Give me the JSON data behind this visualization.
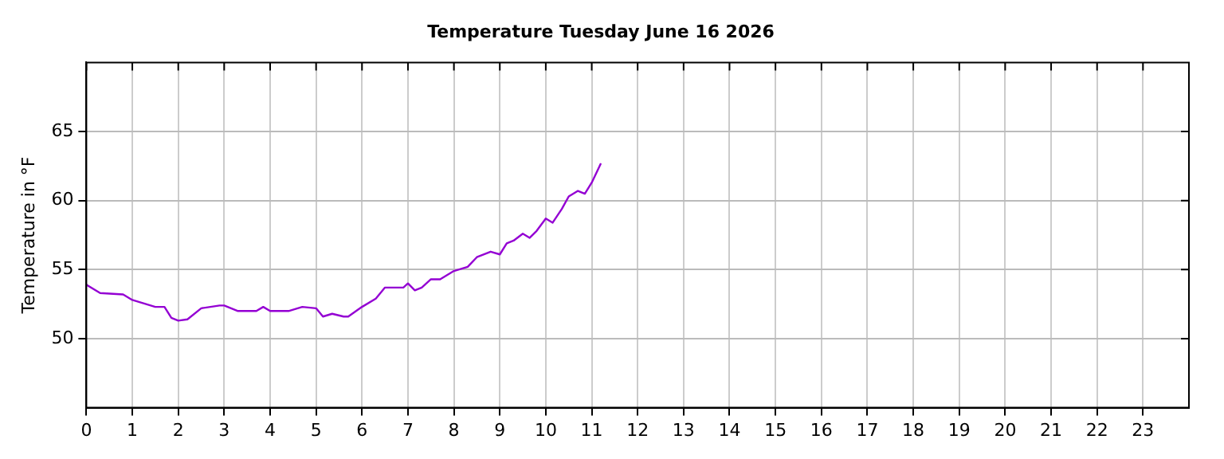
{
  "chart_data": {
    "type": "line",
    "title": "Temperature Tuesday June 16 2026",
    "ylabel": "Temperature in °F",
    "series": [
      {
        "color": "#9400d3",
        "x": [
          0,
          0.3,
          0.8,
          1.0,
          1.5,
          1.7,
          1.85,
          2.0,
          2.2,
          2.5,
          2.9,
          3.0,
          3.3,
          3.7,
          3.85,
          4.0,
          4.4,
          4.7,
          5.0,
          5.15,
          5.35,
          5.6,
          5.7,
          6.0,
          6.3,
          6.5,
          6.9,
          7.0,
          7.15,
          7.3,
          7.5,
          7.7,
          8.0,
          8.3,
          8.5,
          8.8,
          9.0,
          9.15,
          9.3,
          9.5,
          9.65,
          9.8,
          10.0,
          10.15,
          10.35,
          10.5,
          10.7,
          10.85,
          11.0,
          11.2
        ],
        "values": [
          53.9,
          53.3,
          53.2,
          52.8,
          52.3,
          52.3,
          51.5,
          51.3,
          51.4,
          52.2,
          52.4,
          52.4,
          52.0,
          52.0,
          52.3,
          52.0,
          52.0,
          52.3,
          52.2,
          51.6,
          51.8,
          51.6,
          51.6,
          52.3,
          52.9,
          53.7,
          53.7,
          54.0,
          53.5,
          53.7,
          54.3,
          54.3,
          54.9,
          55.2,
          55.9,
          56.3,
          56.1,
          56.9,
          57.1,
          57.6,
          57.3,
          57.8,
          58.7,
          58.4,
          59.4,
          60.3,
          60.7,
          60.5,
          61.3,
          62.7
        ]
      }
    ],
    "xlim": [
      0,
      24
    ],
    "xticks": [
      0,
      1,
      2,
      3,
      4,
      5,
      6,
      7,
      8,
      9,
      10,
      11,
      12,
      13,
      14,
      15,
      16,
      17,
      18,
      19,
      20,
      21,
      22,
      23
    ],
    "ylim": [
      45,
      70
    ],
    "yticks": [
      50,
      55,
      60,
      65
    ],
    "grid": true,
    "legend": false,
    "marker": "none",
    "line_style": "solid"
  }
}
